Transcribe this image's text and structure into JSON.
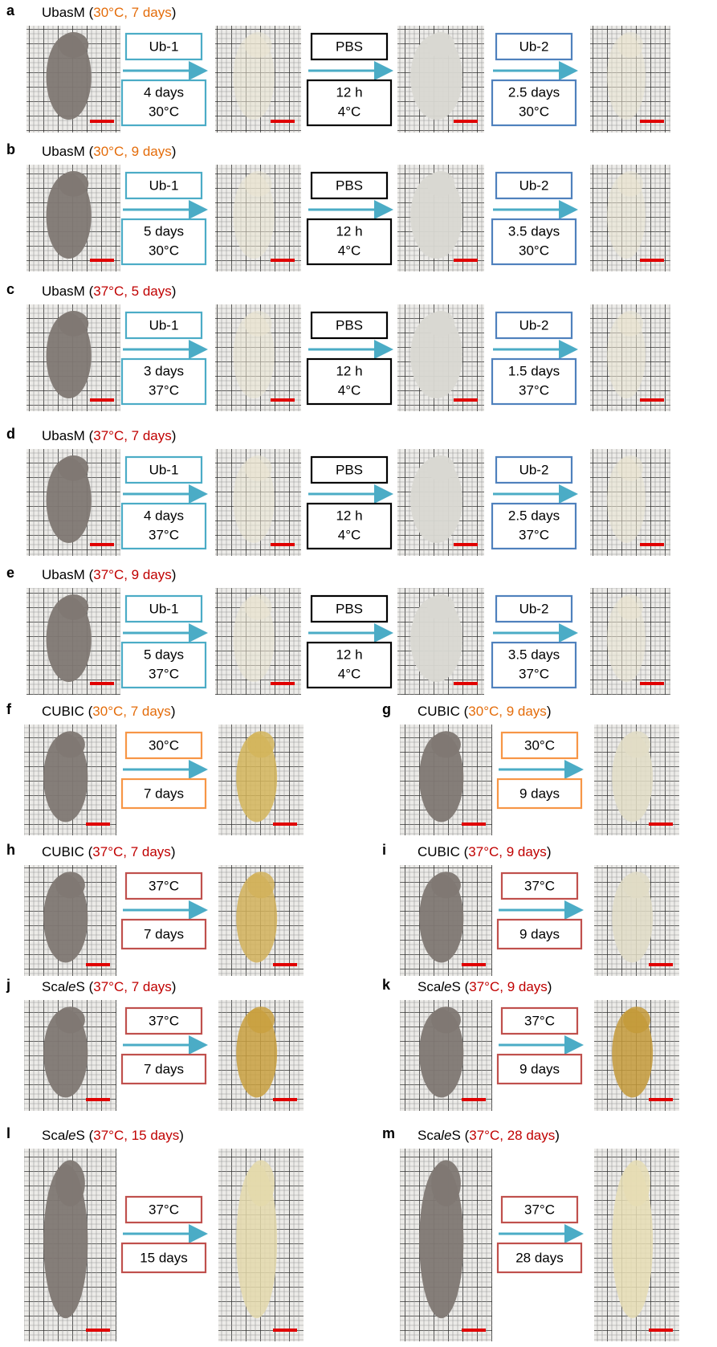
{
  "panels": [
    {
      "letter": "a",
      "title": [
        {
          "text": "UbasM ("
        },
        {
          "text": "30°C, 7 days",
          "color": "#e46c0a"
        },
        {
          "text": ")"
        }
      ],
      "steps": [
        {
          "border": "#4bacc6",
          "top": {
            "text": "Ub-1",
            "color": "#1f4e79"
          },
          "bottom": [
            {
              "text": "4 days"
            },
            {
              "text": "30°C",
              "color": "#e46c0a"
            }
          ]
        },
        {
          "border": "#000000",
          "top": {
            "text": "PBS",
            "color": "#1f4e79"
          },
          "bottom": [
            {
              "text": "12 h"
            },
            {
              "text": "4°C",
              "color": "#2e75b6"
            }
          ]
        },
        {
          "border": "#4f81bd",
          "top": {
            "text": "Ub-2",
            "color": "#1f4e79"
          },
          "bottom": [
            {
              "text": "2.5 days"
            },
            {
              "text": "30°C",
              "color": "#e46c0a"
            }
          ]
        }
      ]
    },
    {
      "letter": "b",
      "title": [
        {
          "text": "UbasM ("
        },
        {
          "text": "30°C, 9 days",
          "color": "#e46c0a"
        },
        {
          "text": ")"
        }
      ],
      "steps": [
        {
          "border": "#4bacc6",
          "top": {
            "text": "Ub-1",
            "color": "#1f4e79"
          },
          "bottom": [
            {
              "text": "5 days"
            },
            {
              "text": "30°C",
              "color": "#e46c0a"
            }
          ]
        },
        {
          "border": "#000000",
          "top": {
            "text": "PBS",
            "color": "#1f4e79"
          },
          "bottom": [
            {
              "text": "12 h"
            },
            {
              "text": "4°C",
              "color": "#2e75b6"
            }
          ]
        },
        {
          "border": "#4f81bd",
          "top": {
            "text": "Ub-2",
            "color": "#1f4e79"
          },
          "bottom": [
            {
              "text": "3.5 days"
            },
            {
              "text": "30°C",
              "color": "#e46c0a"
            }
          ]
        }
      ]
    },
    {
      "letter": "c",
      "title": [
        {
          "text": "UbasM ("
        },
        {
          "text": "37°C, 5 days",
          "color": "#c00000"
        },
        {
          "text": ")"
        }
      ],
      "steps": [
        {
          "border": "#4bacc6",
          "top": {
            "text": "Ub-1",
            "color": "#1f4e79"
          },
          "bottom": [
            {
              "text": "3 days"
            },
            {
              "text": "37°C",
              "color": "#c00000"
            }
          ]
        },
        {
          "border": "#000000",
          "top": {
            "text": "PBS",
            "color": "#1f4e79"
          },
          "bottom": [
            {
              "text": "12 h"
            },
            {
              "text": "4°C",
              "color": "#2e75b6"
            }
          ]
        },
        {
          "border": "#4f81bd",
          "top": {
            "text": "Ub-2",
            "color": "#1f4e79"
          },
          "bottom": [
            {
              "text": "1.5 days"
            },
            {
              "text": "37°C",
              "color": "#c00000"
            }
          ]
        }
      ]
    },
    {
      "letter": "d",
      "title": [
        {
          "text": "UbasM ("
        },
        {
          "text": "37°C, 7 days",
          "color": "#c00000"
        },
        {
          "text": ")"
        }
      ],
      "steps": [
        {
          "border": "#4bacc6",
          "top": {
            "text": "Ub-1",
            "color": "#1f4e79"
          },
          "bottom": [
            {
              "text": "4 days"
            },
            {
              "text": "37°C",
              "color": "#c00000"
            }
          ]
        },
        {
          "border": "#000000",
          "top": {
            "text": "PBS",
            "color": "#1f4e79"
          },
          "bottom": [
            {
              "text": "12 h"
            },
            {
              "text": "4°C",
              "color": "#2e75b6"
            }
          ]
        },
        {
          "border": "#4f81bd",
          "top": {
            "text": "Ub-2",
            "color": "#1f4e79"
          },
          "bottom": [
            {
              "text": "2.5 days"
            },
            {
              "text": "37°C",
              "color": "#c00000"
            }
          ]
        }
      ]
    },
    {
      "letter": "e",
      "title": [
        {
          "text": "UbasM ("
        },
        {
          "text": "37°C, 9 days",
          "color": "#c00000"
        },
        {
          "text": ")"
        }
      ],
      "steps": [
        {
          "border": "#4bacc6",
          "top": {
            "text": "Ub-1",
            "color": "#1f4e79"
          },
          "bottom": [
            {
              "text": "5 days"
            },
            {
              "text": "37°C",
              "color": "#c00000"
            }
          ]
        },
        {
          "border": "#000000",
          "top": {
            "text": "PBS",
            "color": "#1f4e79"
          },
          "bottom": [
            {
              "text": "12 h"
            },
            {
              "text": "4°C",
              "color": "#2e75b6"
            }
          ]
        },
        {
          "border": "#4f81bd",
          "top": {
            "text": "Ub-2",
            "color": "#1f4e79"
          },
          "bottom": [
            {
              "text": "3.5 days"
            },
            {
              "text": "37°C",
              "color": "#c00000"
            }
          ]
        }
      ]
    },
    {
      "letter": "f",
      "title": [
        {
          "text": "CUBIC ("
        },
        {
          "text": "30°C, 7 days",
          "color": "#e46c0a"
        },
        {
          "text": ")"
        }
      ],
      "steps": [
        {
          "border": "#f79646",
          "top": {
            "text": "30°C",
            "color": "#e46c0a"
          },
          "bottom": [
            {
              "text": "7 days"
            }
          ]
        }
      ]
    },
    {
      "letter": "g",
      "title": [
        {
          "text": "CUBIC ("
        },
        {
          "text": "30°C, 9 days",
          "color": "#e46c0a"
        },
        {
          "text": ")"
        }
      ],
      "steps": [
        {
          "border": "#f79646",
          "top": {
            "text": "30°C",
            "color": "#e46c0a"
          },
          "bottom": [
            {
              "text": "9 days"
            }
          ]
        }
      ]
    },
    {
      "letter": "h",
      "title": [
        {
          "text": "CUBIC ("
        },
        {
          "text": "37°C, 7 days",
          "color": "#c00000"
        },
        {
          "text": ")"
        }
      ],
      "steps": [
        {
          "border": "#c0504d",
          "top": {
            "text": "37°C",
            "color": "#c00000"
          },
          "bottom": [
            {
              "text": "7 days"
            }
          ]
        }
      ]
    },
    {
      "letter": "i",
      "title": [
        {
          "text": "CUBIC ("
        },
        {
          "text": "37°C, 9 days",
          "color": "#c00000"
        },
        {
          "text": ")"
        }
      ],
      "steps": [
        {
          "border": "#c0504d",
          "top": {
            "text": "37°C",
            "color": "#c00000"
          },
          "bottom": [
            {
              "text": "9 days"
            }
          ]
        }
      ]
    },
    {
      "letter": "j",
      "title": [
        {
          "text": "Sca"
        },
        {
          "text": "le",
          "italic": true
        },
        {
          "text": "S ("
        },
        {
          "text": "37°C, 7 days",
          "color": "#c00000"
        },
        {
          "text": ")"
        }
      ],
      "steps": [
        {
          "border": "#c0504d",
          "top": {
            "text": "37°C",
            "color": "#c00000"
          },
          "bottom": [
            {
              "text": "7 days"
            }
          ]
        }
      ]
    },
    {
      "letter": "k",
      "title": [
        {
          "text": "Sca"
        },
        {
          "text": "le",
          "italic": true
        },
        {
          "text": "S ("
        },
        {
          "text": "37°C, 9 days",
          "color": "#c00000"
        },
        {
          "text": ")"
        }
      ],
      "steps": [
        {
          "border": "#c0504d",
          "top": {
            "text": "37°C",
            "color": "#c00000"
          },
          "bottom": [
            {
              "text": "9 days"
            }
          ]
        }
      ]
    },
    {
      "letter": "l",
      "title": [
        {
          "text": "Sca"
        },
        {
          "text": "le",
          "italic": true
        },
        {
          "text": "S ("
        },
        {
          "text": "37°C, 15 days",
          "color": "#c00000"
        },
        {
          "text": ")"
        }
      ],
      "steps": [
        {
          "border": "#c0504d",
          "top": {
            "text": "37°C",
            "color": "#c00000"
          },
          "bottom": [
            {
              "text": "15 days"
            }
          ]
        }
      ]
    },
    {
      "letter": "m",
      "title": [
        {
          "text": "Sca"
        },
        {
          "text": "le",
          "italic": true
        },
        {
          "text": "S ("
        },
        {
          "text": "37°C, 28 days",
          "color": "#c00000"
        },
        {
          "text": ")"
        }
      ],
      "steps": [
        {
          "border": "#c0504d",
          "top": {
            "text": "37°C",
            "color": "#c00000"
          },
          "bottom": [
            {
              "text": "28 days"
            }
          ]
        }
      ]
    }
  ]
}
